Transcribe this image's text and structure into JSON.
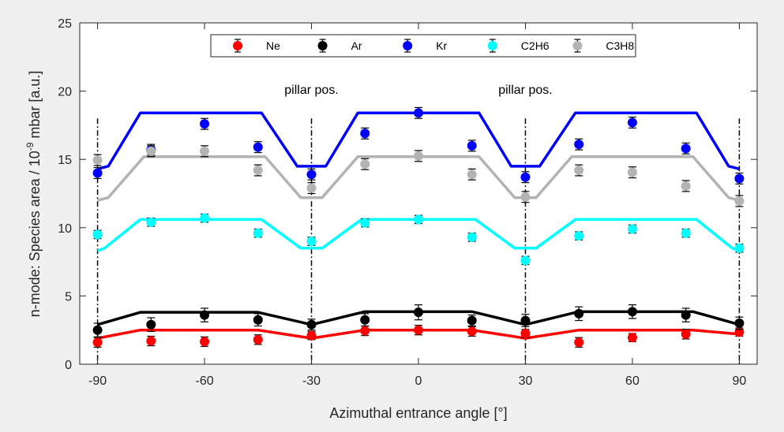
{
  "chart_data": {
    "type": "scatter",
    "title": "",
    "xlabel": "Azimuthal entrance angle [°]",
    "ylabel_parts": [
      "n-mode: Species area / 10",
      "-9",
      " mbar [a.u.]"
    ],
    "xlim": [
      -95,
      95
    ],
    "ylim": [
      0,
      25
    ],
    "xticks": [
      "-90",
      "-60",
      "-30",
      "0",
      "30",
      "60",
      "90"
    ],
    "yticks": [
      "0",
      "5",
      "10",
      "15",
      "20",
      "25"
    ],
    "grid": false,
    "legend_position": "top-center",
    "annotations": [
      {
        "text": "pillar pos.",
        "x": -30,
        "y": 19.8
      },
      {
        "text": "pillar pos.",
        "x": 30,
        "y": 19.8
      }
    ],
    "pillar_lines_x": [
      -90,
      -30,
      30,
      90
    ],
    "x": [
      -90,
      -75,
      -60,
      -45,
      -30,
      -15,
      0,
      15,
      30,
      45,
      60,
      75,
      90
    ],
    "series": [
      {
        "name": "Ne",
        "color": "#ff0000",
        "values": [
          1.6,
          1.7,
          1.65,
          1.8,
          2.1,
          2.45,
          2.5,
          2.4,
          2.25,
          1.6,
          1.95,
          2.2,
          2.35
        ],
        "errors": [
          0.35,
          0.35,
          0.35,
          0.35,
          0.3,
          0.35,
          0.35,
          0.35,
          0.3,
          0.35,
          0.3,
          0.35,
          0.3
        ],
        "fit_x": [
          -90,
          -78,
          -45,
          -30,
          -15,
          15,
          30,
          45,
          77,
          90
        ],
        "fit_y": [
          1.9,
          2.5,
          2.5,
          1.9,
          2.5,
          2.5,
          1.9,
          2.5,
          2.5,
          2.2
        ]
      },
      {
        "name": "Ar",
        "color": "#000000",
        "values": [
          2.5,
          2.9,
          3.6,
          3.25,
          2.9,
          3.25,
          3.8,
          3.2,
          3.2,
          3.7,
          3.85,
          3.6,
          3.0
        ],
        "errors": [
          0.5,
          0.5,
          0.5,
          0.45,
          0.4,
          0.45,
          0.55,
          0.4,
          0.45,
          0.5,
          0.5,
          0.5,
          0.45
        ],
        "fit_x": [
          -90,
          -78,
          -45,
          -30,
          -15,
          15,
          30,
          45,
          77,
          90
        ],
        "fit_y": [
          2.9,
          3.8,
          3.8,
          2.9,
          3.85,
          3.85,
          2.9,
          3.85,
          3.85,
          2.9
        ]
      },
      {
        "name": "Kr",
        "color": "#0000ff",
        "values": [
          14.0,
          15.7,
          17.6,
          15.9,
          13.9,
          16.9,
          18.4,
          16.0,
          13.7,
          16.1,
          17.7,
          15.8,
          13.6
        ],
        "errors": [
          0.4,
          0.4,
          0.4,
          0.4,
          0.4,
          0.4,
          0.4,
          0.4,
          0.4,
          0.4,
          0.4,
          0.4,
          0.4
        ],
        "fit_x": [
          -90,
          -87,
          -78,
          -44,
          -34,
          -26,
          -17,
          17,
          26,
          34,
          44,
          78,
          87,
          90
        ],
        "fit_y": [
          14.3,
          14.5,
          18.4,
          18.4,
          14.5,
          14.5,
          18.4,
          18.4,
          14.5,
          14.5,
          18.4,
          18.4,
          14.5,
          14.3
        ]
      },
      {
        "name": "C2H6",
        "color": "#00ffff",
        "values": [
          9.5,
          10.4,
          10.7,
          9.6,
          9.0,
          10.35,
          10.6,
          9.3,
          7.6,
          9.4,
          9.9,
          9.6,
          8.5
        ],
        "errors": [
          0.3,
          0.3,
          0.3,
          0.3,
          0.3,
          0.3,
          0.3,
          0.3,
          0.3,
          0.3,
          0.3,
          0.3,
          0.3
        ],
        "fit_x": [
          -90,
          -88,
          -78,
          -44,
          -33,
          -27,
          -16,
          16,
          27,
          33,
          44,
          78,
          88,
          90
        ],
        "fit_y": [
          8.3,
          8.5,
          10.6,
          10.6,
          8.5,
          8.5,
          10.6,
          10.6,
          8.5,
          8.5,
          10.6,
          10.6,
          8.5,
          8.3
        ]
      },
      {
        "name": "C3H8",
        "color": "#b3b3b3",
        "values": [
          14.95,
          15.6,
          15.6,
          14.2,
          12.9,
          14.65,
          15.25,
          13.9,
          12.25,
          14.2,
          14.05,
          13.05,
          11.95
        ],
        "errors": [
          0.4,
          0.4,
          0.4,
          0.4,
          0.4,
          0.4,
          0.4,
          0.4,
          0.4,
          0.4,
          0.4,
          0.4,
          0.4
        ],
        "fit_x": [
          -90,
          -87,
          -77,
          -43,
          -33,
          -27,
          -17,
          17,
          27,
          33,
          43,
          77,
          87,
          90
        ],
        "fit_y": [
          12.0,
          12.2,
          15.2,
          15.2,
          12.2,
          12.2,
          15.2,
          15.2,
          12.2,
          12.2,
          15.2,
          15.2,
          12.2,
          12.0
        ]
      }
    ]
  }
}
